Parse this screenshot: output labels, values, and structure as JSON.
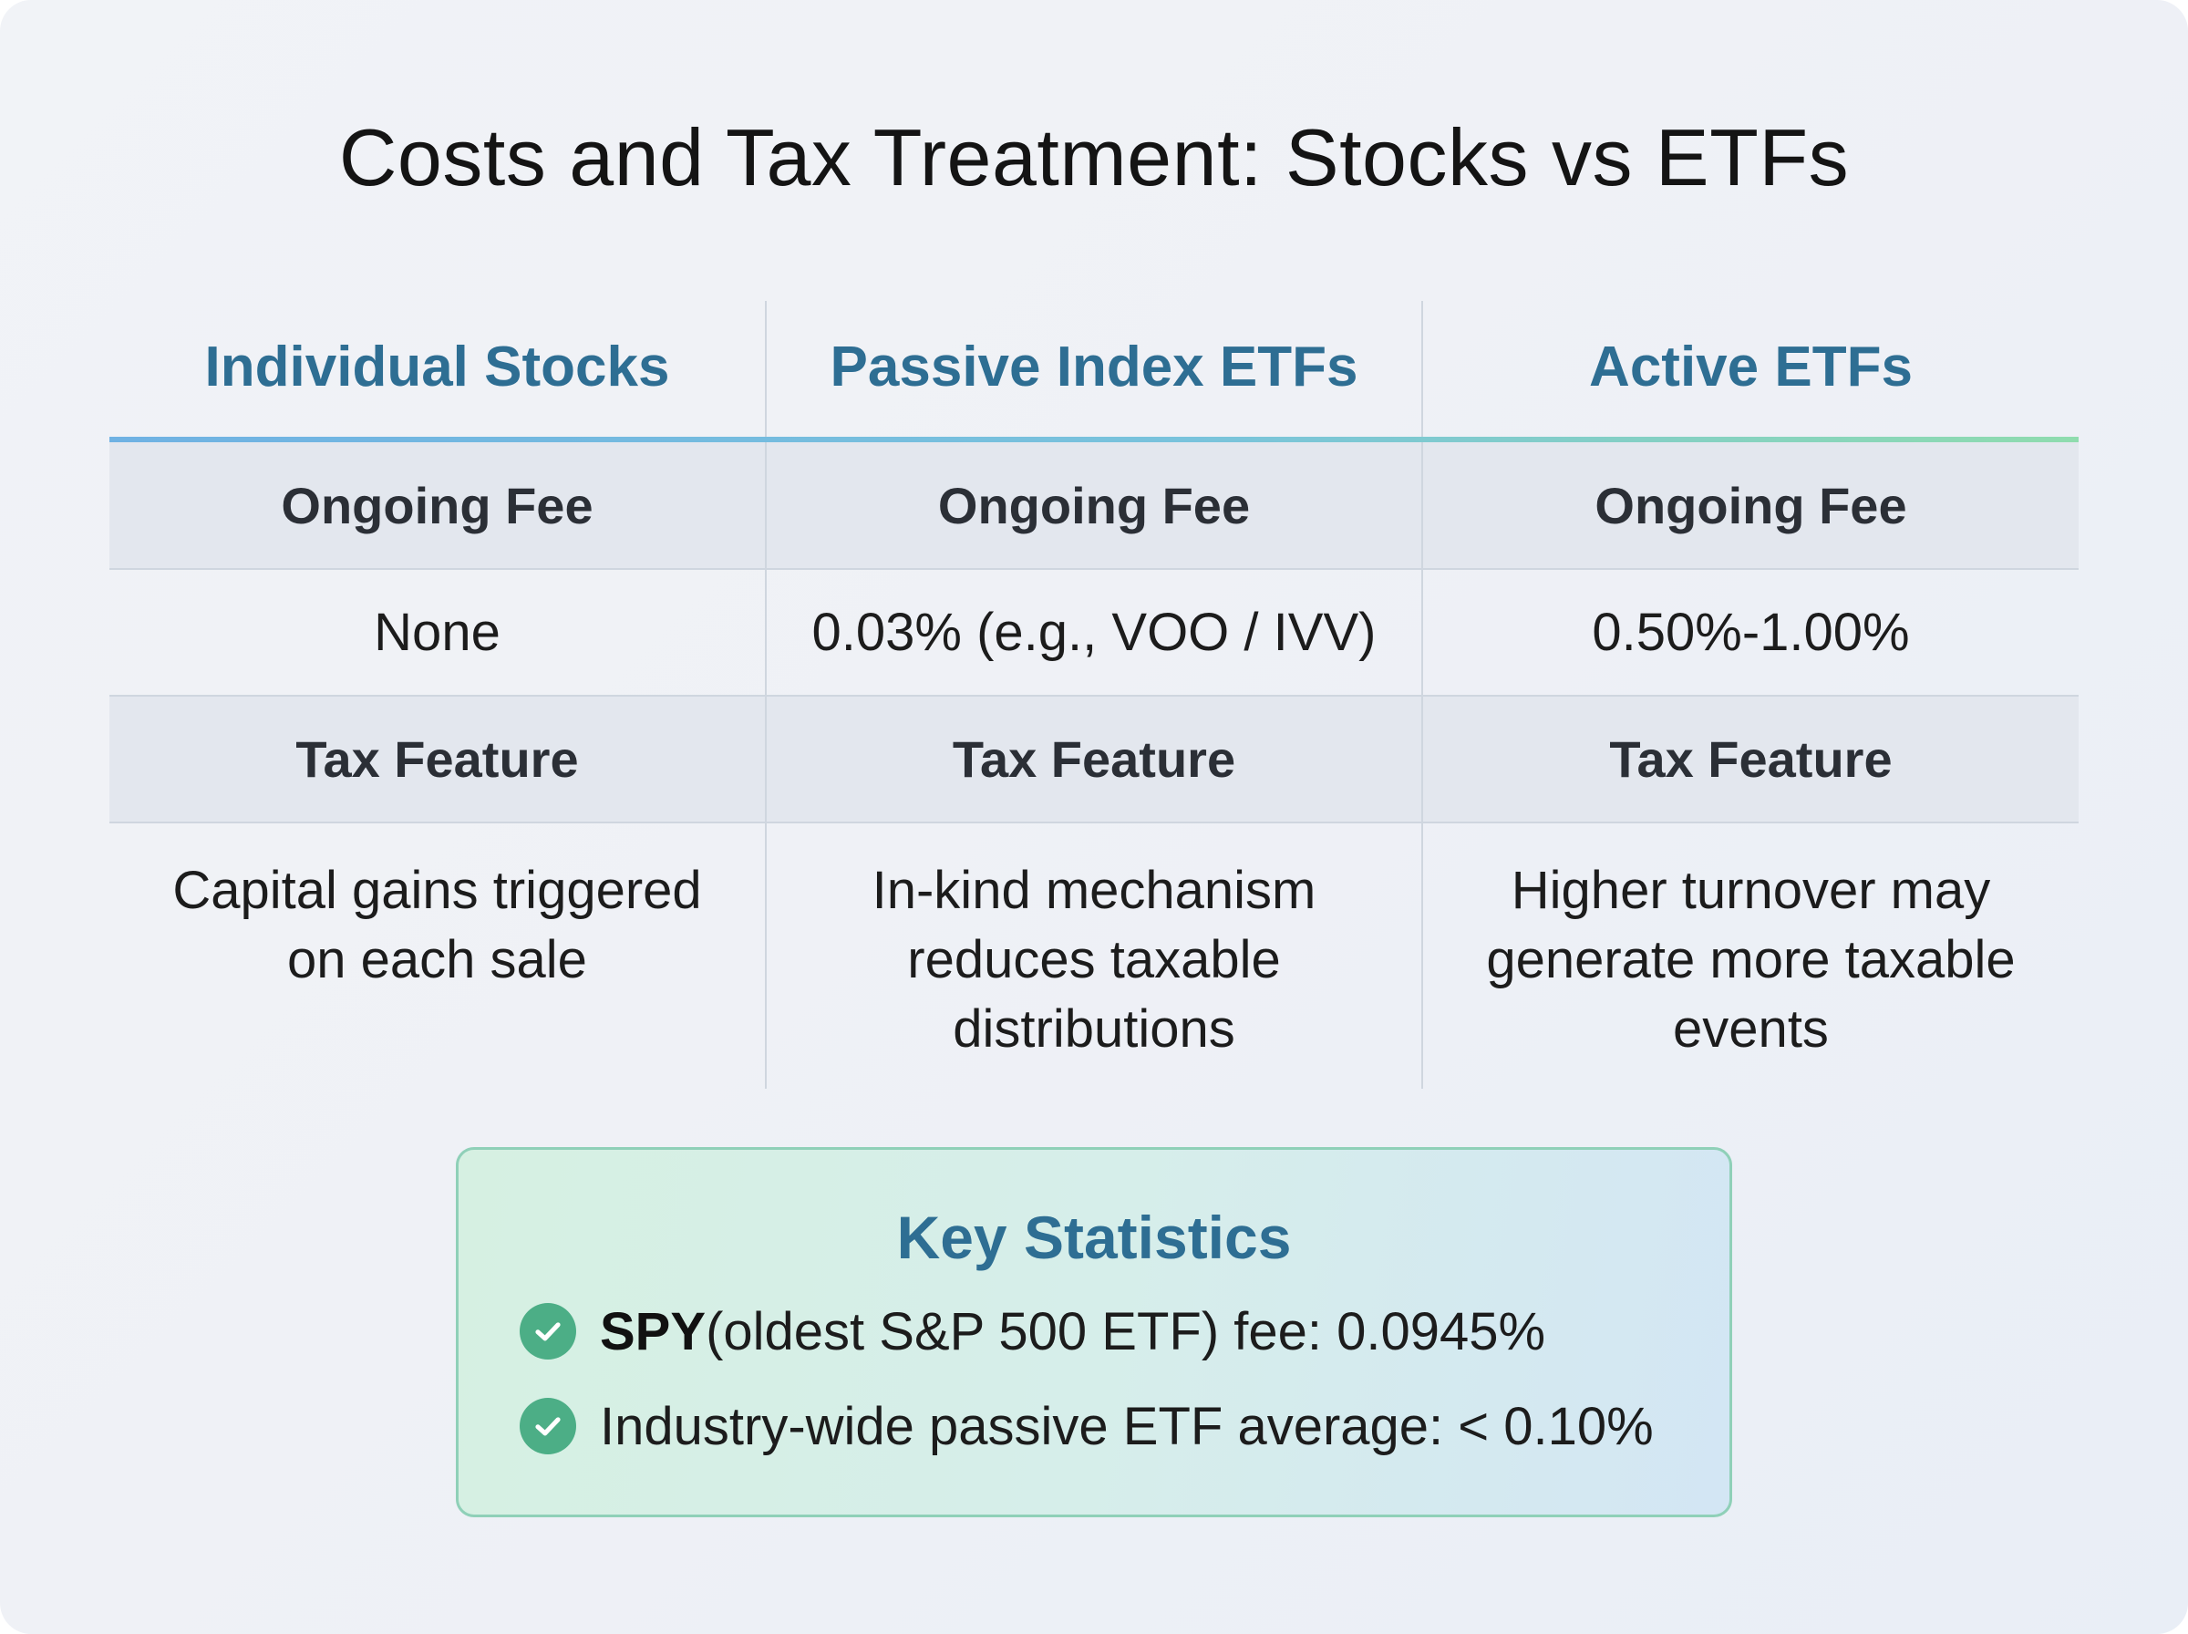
{
  "title": "Costs and Tax Treatment: Stocks vs ETFs",
  "columns": [
    "Individual Stocks",
    "Passive Index ETFs",
    "Active ETFs"
  ],
  "rows": [
    {
      "label": "Ongoing Fee",
      "values": [
        "None",
        "0.03% (e.g., VOO / IVV)",
        "0.50%-1.00%"
      ]
    },
    {
      "label": "Tax Feature",
      "values": [
        "Capital gains triggered on each sale",
        "In-kind mechanism reduces taxable distributions",
        "Higher turnover may generate more taxable events"
      ]
    }
  ],
  "key_statistics": {
    "title": "Key Statistics",
    "items": [
      {
        "strong": "SPY",
        "text": " (oldest S&P 500 ETF) fee: 0.0945%",
        "icon": "check-circle-icon"
      },
      {
        "strong": "",
        "text": "Industry-wide passive ETF average: < 0.10%",
        "icon": "check-circle-icon"
      }
    ]
  },
  "colors": {
    "heading_blue": "#2e6e93",
    "check_green": "#4cae86",
    "label_row_bg": "#e3e7ee"
  }
}
